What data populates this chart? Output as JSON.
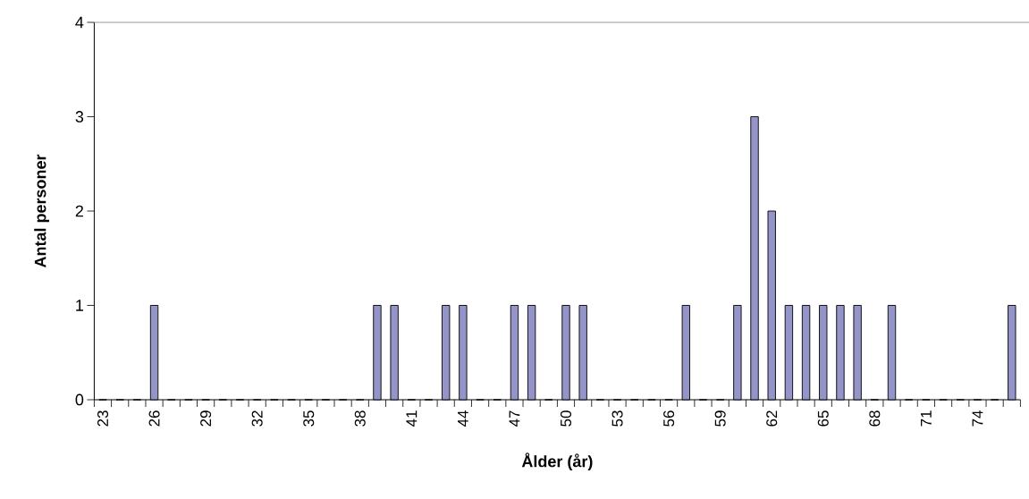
{
  "chart_data": {
    "type": "bar",
    "xlabel": "Ålder (år)",
    "ylabel": "Antal personer",
    "categories": [
      "23",
      null,
      null,
      "26",
      null,
      null,
      "29",
      null,
      null,
      "32",
      null,
      null,
      "35",
      null,
      null,
      "38",
      null,
      null,
      "41",
      null,
      null,
      "44",
      null,
      null,
      "47",
      null,
      null,
      "50",
      null,
      null,
      "53",
      null,
      null,
      "56",
      null,
      null,
      "59",
      null,
      null,
      "62",
      null,
      null,
      "65",
      null,
      null,
      "68",
      null,
      null,
      "71",
      null,
      null,
      "74",
      null,
      null
    ],
    "values": [
      0,
      0,
      0,
      1,
      0,
      0,
      0,
      0,
      0,
      0,
      0,
      0,
      0,
      0,
      0,
      0,
      1,
      1,
      0,
      0,
      1,
      1,
      0,
      0,
      1,
      1,
      0,
      1,
      1,
      0,
      0,
      0,
      0,
      0,
      1,
      0,
      0,
      1,
      3,
      2,
      1,
      1,
      1,
      1,
      1,
      0,
      1,
      0,
      0,
      0,
      0,
      0,
      0,
      1
    ],
    "color": "#9494c8",
    "ylim": [
      0,
      4
    ],
    "yticks": [
      0,
      1,
      2,
      3,
      4
    ],
    "grid": false
  }
}
